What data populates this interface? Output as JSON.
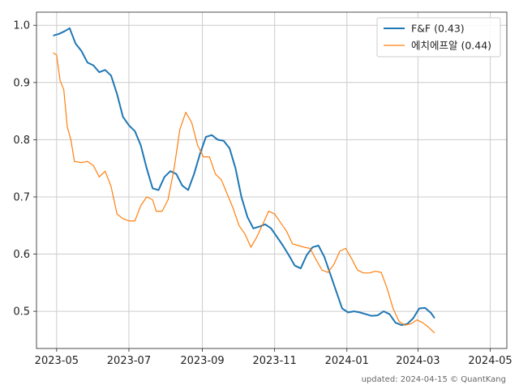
{
  "chart_data": {
    "type": "line",
    "title": "",
    "xlabel": "",
    "ylabel": "",
    "x_ticks": [
      "2023-05",
      "2023-07",
      "2023-09",
      "2023-11",
      "2024-01",
      "2024-03",
      "2024-05"
    ],
    "y_ticks": [
      "0.5",
      "0.6",
      "0.7",
      "0.8",
      "0.9",
      "1.0"
    ],
    "xlim": [
      "2023-04-14",
      "2024-05-15"
    ],
    "ylim": [
      0.435,
      1.023
    ],
    "grid": true,
    "legend_position": "top-right",
    "footer": "updated: 2024-04-15 © QuantKang",
    "colors": {
      "F&F (0.43)": "#1f77b4",
      "에치에프알 (0.44)": "#ff7f0e"
    },
    "series": [
      {
        "name": "F&F (0.43)",
        "points": [
          [
            "2023-04-28",
            0.982
          ],
          [
            "2023-05-03",
            0.985
          ],
          [
            "2023-05-08",
            0.99
          ],
          [
            "2023-05-12",
            0.995
          ],
          [
            "2023-05-17",
            0.968
          ],
          [
            "2023-05-22",
            0.955
          ],
          [
            "2023-05-27",
            0.935
          ],
          [
            "2023-06-01",
            0.93
          ],
          [
            "2023-06-06",
            0.918
          ],
          [
            "2023-06-11",
            0.922
          ],
          [
            "2023-06-16",
            0.912
          ],
          [
            "2023-06-21",
            0.88
          ],
          [
            "2023-06-26",
            0.84
          ],
          [
            "2023-07-01",
            0.825
          ],
          [
            "2023-07-06",
            0.815
          ],
          [
            "2023-07-11",
            0.79
          ],
          [
            "2023-07-16",
            0.75
          ],
          [
            "2023-07-21",
            0.715
          ],
          [
            "2023-07-26",
            0.712
          ],
          [
            "2023-07-31",
            0.735
          ],
          [
            "2023-08-05",
            0.745
          ],
          [
            "2023-08-10",
            0.74
          ],
          [
            "2023-08-15",
            0.72
          ],
          [
            "2023-08-20",
            0.712
          ],
          [
            "2023-08-25",
            0.74
          ],
          [
            "2023-08-30",
            0.775
          ],
          [
            "2023-09-04",
            0.805
          ],
          [
            "2023-09-09",
            0.808
          ],
          [
            "2023-09-14",
            0.8
          ],
          [
            "2023-09-19",
            0.798
          ],
          [
            "2023-09-24",
            0.785
          ],
          [
            "2023-09-29",
            0.75
          ],
          [
            "2023-10-04",
            0.7
          ],
          [
            "2023-10-09",
            0.665
          ],
          [
            "2023-10-14",
            0.645
          ],
          [
            "2023-10-19",
            0.648
          ],
          [
            "2023-10-24",
            0.652
          ],
          [
            "2023-10-29",
            0.645
          ],
          [
            "2023-11-03",
            0.63
          ],
          [
            "2023-11-08",
            0.615
          ],
          [
            "2023-11-13",
            0.598
          ],
          [
            "2023-11-18",
            0.58
          ],
          [
            "2023-11-23",
            0.575
          ],
          [
            "2023-11-28",
            0.598
          ],
          [
            "2023-12-03",
            0.612
          ],
          [
            "2023-12-08",
            0.615
          ],
          [
            "2023-12-13",
            0.595
          ],
          [
            "2023-12-18",
            0.565
          ],
          [
            "2023-12-23",
            0.535
          ],
          [
            "2023-12-28",
            0.505
          ],
          [
            "2024-01-02",
            0.498
          ],
          [
            "2024-01-07",
            0.5
          ],
          [
            "2024-01-12",
            0.498
          ],
          [
            "2024-01-17",
            0.495
          ],
          [
            "2024-01-22",
            0.492
          ],
          [
            "2024-01-27",
            0.493
          ],
          [
            "2024-02-01",
            0.5
          ],
          [
            "2024-02-06",
            0.495
          ],
          [
            "2024-02-11",
            0.48
          ],
          [
            "2024-02-16",
            0.476
          ],
          [
            "2024-02-21",
            0.478
          ],
          [
            "2024-02-26",
            0.488
          ],
          [
            "2024-03-02",
            0.505
          ],
          [
            "2024-03-07",
            0.506
          ],
          [
            "2024-03-12",
            0.497
          ],
          [
            "2024-03-15",
            0.488
          ]
        ]
      },
      {
        "name": "에치에프알 (0.44)",
        "points": [
          [
            "2023-04-28",
            0.952
          ],
          [
            "2023-05-01",
            0.948
          ],
          [
            "2023-05-04",
            0.903
          ],
          [
            "2023-05-07",
            0.888
          ],
          [
            "2023-05-10",
            0.822
          ],
          [
            "2023-05-13",
            0.8
          ],
          [
            "2023-05-16",
            0.762
          ],
          [
            "2023-05-22",
            0.76
          ],
          [
            "2023-05-27",
            0.762
          ],
          [
            "2023-06-01",
            0.755
          ],
          [
            "2023-06-06",
            0.735
          ],
          [
            "2023-06-11",
            0.745
          ],
          [
            "2023-06-16",
            0.718
          ],
          [
            "2023-06-21",
            0.67
          ],
          [
            "2023-06-26",
            0.662
          ],
          [
            "2023-07-01",
            0.658
          ],
          [
            "2023-07-06",
            0.658
          ],
          [
            "2023-07-11",
            0.685
          ],
          [
            "2023-07-16",
            0.7
          ],
          [
            "2023-07-21",
            0.695
          ],
          [
            "2023-07-24",
            0.675
          ],
          [
            "2023-07-29",
            0.675
          ],
          [
            "2023-08-03",
            0.695
          ],
          [
            "2023-08-08",
            0.748
          ],
          [
            "2023-08-13",
            0.818
          ],
          [
            "2023-08-18",
            0.848
          ],
          [
            "2023-08-23",
            0.83
          ],
          [
            "2023-08-28",
            0.79
          ],
          [
            "2023-09-02",
            0.77
          ],
          [
            "2023-09-07",
            0.77
          ],
          [
            "2023-09-12",
            0.74
          ],
          [
            "2023-09-17",
            0.73
          ],
          [
            "2023-09-22",
            0.705
          ],
          [
            "2023-09-27",
            0.68
          ],
          [
            "2023-10-02",
            0.65
          ],
          [
            "2023-10-07",
            0.635
          ],
          [
            "2023-10-12",
            0.612
          ],
          [
            "2023-10-17",
            0.63
          ],
          [
            "2023-10-22",
            0.652
          ],
          [
            "2023-10-27",
            0.675
          ],
          [
            "2023-11-01",
            0.67
          ],
          [
            "2023-11-06",
            0.655
          ],
          [
            "2023-11-11",
            0.64
          ],
          [
            "2023-11-16",
            0.618
          ],
          [
            "2023-11-21",
            0.615
          ],
          [
            "2023-11-26",
            0.612
          ],
          [
            "2023-12-01",
            0.61
          ],
          [
            "2023-12-06",
            0.59
          ],
          [
            "2023-12-11",
            0.572
          ],
          [
            "2023-12-16",
            0.568
          ],
          [
            "2023-12-21",
            0.582
          ],
          [
            "2023-12-26",
            0.605
          ],
          [
            "2023-12-31",
            0.61
          ],
          [
            "2024-01-05",
            0.592
          ],
          [
            "2024-01-10",
            0.572
          ],
          [
            "2024-01-15",
            0.567
          ],
          [
            "2024-01-20",
            0.567
          ],
          [
            "2024-01-25",
            0.57
          ],
          [
            "2024-01-30",
            0.568
          ],
          [
            "2024-02-04",
            0.54
          ],
          [
            "2024-02-09",
            0.505
          ],
          [
            "2024-02-14",
            0.482
          ],
          [
            "2024-02-19",
            0.476
          ],
          [
            "2024-02-24",
            0.478
          ],
          [
            "2024-02-29",
            0.485
          ],
          [
            "2024-03-05",
            0.48
          ],
          [
            "2024-03-10",
            0.472
          ],
          [
            "2024-03-15",
            0.462
          ]
        ]
      }
    ]
  }
}
